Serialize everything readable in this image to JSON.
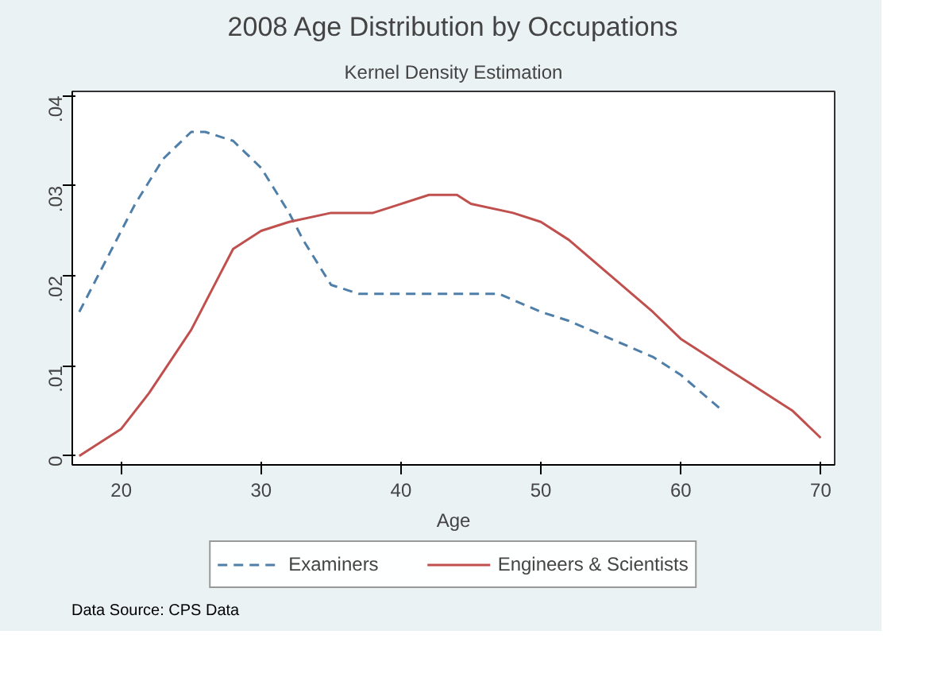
{
  "chart_data": {
    "type": "line",
    "title": "2008 Age Distribution by Occupations",
    "subtitle": "Kernel Density Estimation",
    "xlabel": "Age",
    "xlim": [
      16.5,
      71
    ],
    "xticks": [
      20,
      30,
      40,
      50,
      60,
      70
    ],
    "ylim": [
      -0.001,
      0.0405
    ],
    "yticks": [
      0,
      {
        "value": 0.01,
        "label": ".01"
      },
      {
        "value": 0.02,
        "label": ".02"
      },
      {
        "value": 0.03,
        "label": ".03"
      },
      {
        "value": 0.04,
        "label": ".04"
      }
    ],
    "series": [
      {
        "name": "Examiners",
        "color": "#4f7fa8",
        "line_style": "dashed",
        "x": [
          17,
          19,
          21,
          23,
          25,
          26,
          28,
          30,
          32,
          33,
          35,
          37,
          40,
          43,
          45,
          47,
          50,
          52,
          55,
          58,
          60,
          63
        ],
        "values": [
          0.016,
          0.022,
          0.028,
          0.033,
          0.036,
          0.036,
          0.035,
          0.032,
          0.027,
          0.024,
          0.019,
          0.018,
          0.018,
          0.018,
          0.018,
          0.018,
          0.016,
          0.015,
          0.013,
          0.011,
          0.009,
          0.005
        ]
      },
      {
        "name": "Engineers & Scientists",
        "color": "#c0504d",
        "line_style": "solid",
        "x": [
          17,
          20,
          22,
          25,
          27,
          28,
          30,
          32,
          35,
          37,
          38,
          40,
          42,
          44,
          45,
          48,
          50,
          52,
          55,
          58,
          60,
          63,
          65,
          68,
          70
        ],
        "values": [
          0,
          0.003,
          0.007,
          0.014,
          0.02,
          0.023,
          0.025,
          0.026,
          0.027,
          0.027,
          0.027,
          0.028,
          0.029,
          0.029,
          0.028,
          0.027,
          0.026,
          0.024,
          0.02,
          0.016,
          0.013,
          0.01,
          0.008,
          0.005,
          0.002
        ]
      }
    ],
    "legend": "bottom",
    "annotations": [
      "Data Source: CPS Data"
    ]
  }
}
